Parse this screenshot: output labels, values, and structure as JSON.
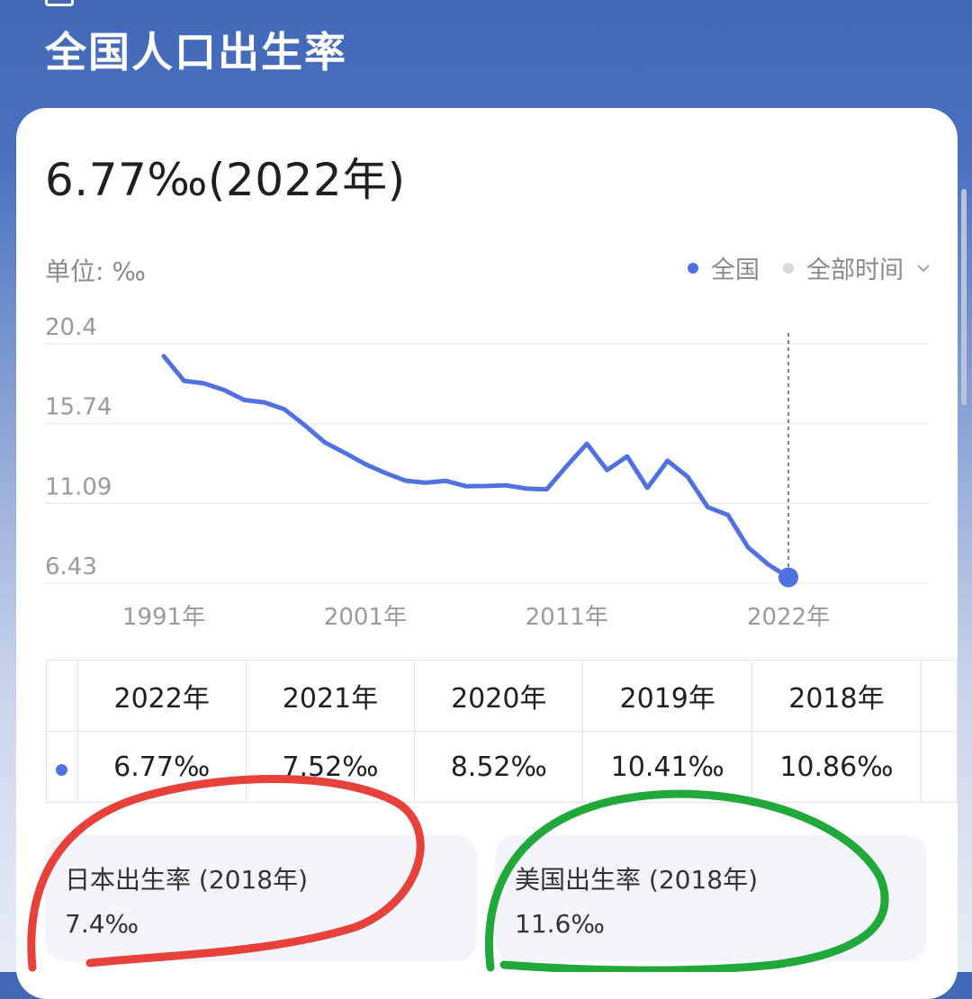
{
  "header": {
    "title": "全国人口出生率"
  },
  "headline": "6.77‰(2022年)",
  "unit_label": "单位: ‰",
  "legend": {
    "series_label": "全国",
    "range_label": "全部时间",
    "series_color": "#4f72e0",
    "range_dot_color": "#d9d9d9"
  },
  "chart_data": {
    "type": "line",
    "ylim": [
      6.43,
      20.4
    ],
    "y_ticks": [
      "20.4",
      "15.74",
      "11.09",
      "6.43"
    ],
    "x_ticks": [
      "1991年",
      "2001年",
      "2011年",
      "2022年"
    ],
    "x_tick_years": [
      1991,
      2001,
      2011,
      2022
    ],
    "highlight_year": 2022,
    "grid": true,
    "series": [
      {
        "name": "全国",
        "color": "#4f72e0",
        "x": [
          1991,
          1992,
          1993,
          1994,
          1995,
          1996,
          1997,
          1998,
          1999,
          2000,
          2001,
          2002,
          2003,
          2004,
          2005,
          2006,
          2007,
          2008,
          2009,
          2010,
          2011,
          2012,
          2013,
          2014,
          2015,
          2016,
          2017,
          2018,
          2019,
          2020,
          2021,
          2022
        ],
        "values": [
          19.68,
          18.24,
          18.09,
          17.7,
          17.12,
          16.98,
          16.57,
          15.64,
          14.64,
          14.03,
          13.38,
          12.86,
          12.41,
          12.29,
          12.4,
          12.09,
          12.1,
          12.14,
          11.95,
          11.9,
          13.27,
          14.57,
          13.03,
          13.83,
          11.99,
          13.57,
          12.64,
          10.86,
          10.41,
          8.52,
          7.52,
          6.77
        ]
      }
    ]
  },
  "table": {
    "years": [
      "2022年",
      "2021年",
      "2020年",
      "2019年",
      "2018年"
    ],
    "values": [
      "6.77‰",
      "7.52‰",
      "8.52‰",
      "10.41‰",
      "10.86‰"
    ]
  },
  "compare": [
    {
      "title": "日本出生率 (2018年)",
      "value": "7.4‰"
    },
    {
      "title": "美国出生率 (2018年)",
      "value": "11.6‰"
    }
  ],
  "annotations": {
    "left_circle_color": "#e8403a",
    "right_circle_color": "#21a83a"
  }
}
